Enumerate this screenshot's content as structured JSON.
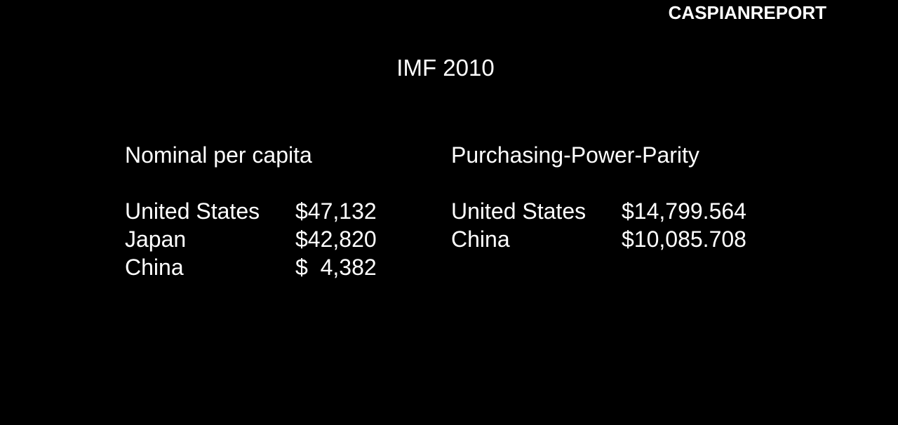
{
  "watermark": "CASPIANREPORT",
  "title": "IMF 2010",
  "nominal": {
    "heading": "Nominal per capita",
    "rows": [
      {
        "country": "United States",
        "value": "$47,132"
      },
      {
        "country": "Japan",
        "value": "$42,820"
      },
      {
        "country": "China",
        "value": "$  4,382"
      }
    ]
  },
  "ppp": {
    "heading": "Purchasing-Power-Parity",
    "rows": [
      {
        "country": "United States",
        "value": "$14,799.564"
      },
      {
        "country": "China",
        "value": "$10,085.708"
      }
    ]
  },
  "colors": {
    "background": "#000000",
    "text": "#ffffff"
  }
}
